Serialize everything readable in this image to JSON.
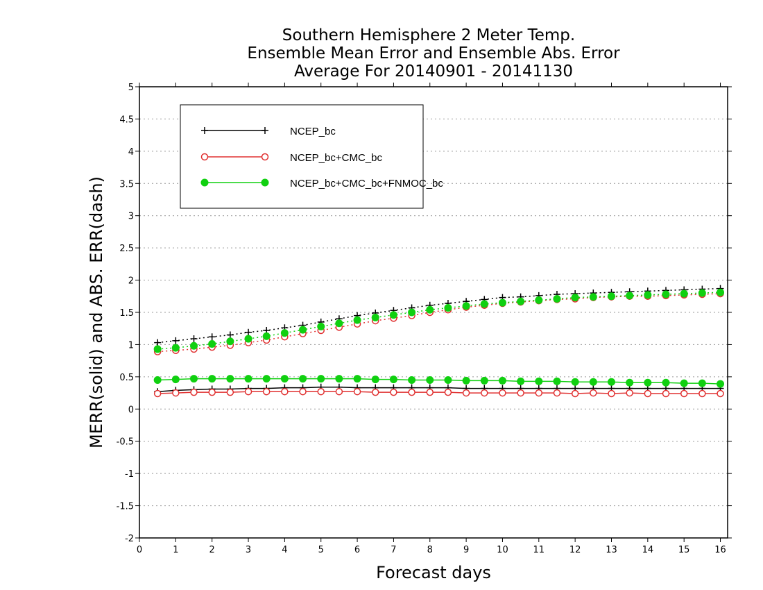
{
  "chart_data": {
    "type": "line",
    "title": [
      "Southern Hemisphere 2 Meter Temp.",
      "Ensemble Mean Error and Ensemble Abs. Error",
      "Average For 20140901 - 20141130"
    ],
    "xlabel": "Forecast days",
    "ylabel": "MERR(solid) and ABS. ERR(dash)",
    "xlim": [
      0,
      16.2
    ],
    "ylim": [
      -2,
      5
    ],
    "xticks": [
      0,
      1,
      2,
      3,
      4,
      5,
      6,
      7,
      8,
      9,
      10,
      11,
      12,
      13,
      14,
      15,
      16
    ],
    "yticks": [
      -2,
      -1.5,
      -1,
      -0.5,
      0,
      0.5,
      1,
      1.5,
      2,
      2.5,
      3,
      3.5,
      4,
      4.5,
      5
    ],
    "ytick_labels": [
      "-2",
      "-1.5",
      "-1",
      "-0.5",
      "0",
      "0.5",
      "1",
      "1.5",
      "2",
      "2.5",
      "3",
      "3.5",
      "4",
      "4.5",
      "5"
    ],
    "grid": "horizontal dotted",
    "legend_position": "top-left",
    "x": [
      0.5,
      1,
      1.5,
      2,
      2.5,
      3,
      3.5,
      4,
      4.5,
      5,
      5.5,
      6,
      6.5,
      7,
      7.5,
      8,
      8.5,
      9,
      9.5,
      10,
      10.5,
      11,
      11.5,
      12,
      12.5,
      13,
      13.5,
      14,
      14.5,
      15,
      15.5,
      16
    ],
    "series": [
      {
        "name": "NCEP_bc",
        "color": "#000000",
        "marker": "plus",
        "merr": [
          0.27,
          0.29,
          0.3,
          0.31,
          0.31,
          0.32,
          0.32,
          0.33,
          0.33,
          0.34,
          0.34,
          0.33,
          0.33,
          0.33,
          0.33,
          0.33,
          0.33,
          0.32,
          0.32,
          0.32,
          0.32,
          0.32,
          0.32,
          0.32,
          0.32,
          0.32,
          0.32,
          0.32,
          0.32,
          0.32,
          0.32,
          0.32
        ],
        "abs_err": [
          1.03,
          1.06,
          1.09,
          1.12,
          1.15,
          1.19,
          1.22,
          1.26,
          1.3,
          1.35,
          1.4,
          1.45,
          1.49,
          1.53,
          1.57,
          1.61,
          1.64,
          1.67,
          1.7,
          1.73,
          1.74,
          1.76,
          1.78,
          1.79,
          1.8,
          1.81,
          1.82,
          1.83,
          1.84,
          1.85,
          1.86,
          1.87
        ]
      },
      {
        "name": "NCEP_bc+CMC_bc",
        "color": "#e03030",
        "marker": "open-circle",
        "merr": [
          0.24,
          0.25,
          0.26,
          0.26,
          0.26,
          0.27,
          0.27,
          0.27,
          0.27,
          0.27,
          0.27,
          0.27,
          0.26,
          0.26,
          0.26,
          0.26,
          0.26,
          0.25,
          0.25,
          0.25,
          0.25,
          0.25,
          0.25,
          0.24,
          0.25,
          0.24,
          0.25,
          0.24,
          0.24,
          0.24,
          0.24,
          0.24
        ],
        "abs_err": [
          0.89,
          0.91,
          0.93,
          0.96,
          0.99,
          1.03,
          1.07,
          1.12,
          1.17,
          1.22,
          1.27,
          1.32,
          1.37,
          1.41,
          1.45,
          1.5,
          1.54,
          1.58,
          1.61,
          1.64,
          1.66,
          1.68,
          1.7,
          1.71,
          1.73,
          1.74,
          1.75,
          1.75,
          1.76,
          1.77,
          1.78,
          1.79
        ]
      },
      {
        "name": "NCEP_bc+CMC_bc+FNMOC_bc",
        "color": "#10d010",
        "marker": "filled-circle",
        "merr": [
          0.45,
          0.46,
          0.47,
          0.47,
          0.47,
          0.47,
          0.47,
          0.47,
          0.47,
          0.47,
          0.47,
          0.47,
          0.46,
          0.46,
          0.45,
          0.45,
          0.45,
          0.44,
          0.44,
          0.44,
          0.43,
          0.43,
          0.43,
          0.42,
          0.42,
          0.42,
          0.41,
          0.41,
          0.41,
          0.4,
          0.4,
          0.39
        ],
        "abs_err": [
          0.93,
          0.95,
          0.98,
          1.01,
          1.05,
          1.09,
          1.13,
          1.18,
          1.23,
          1.28,
          1.33,
          1.38,
          1.42,
          1.46,
          1.5,
          1.54,
          1.57,
          1.6,
          1.63,
          1.65,
          1.67,
          1.69,
          1.71,
          1.73,
          1.74,
          1.75,
          1.76,
          1.77,
          1.78,
          1.79,
          1.8,
          1.81
        ]
      }
    ]
  }
}
